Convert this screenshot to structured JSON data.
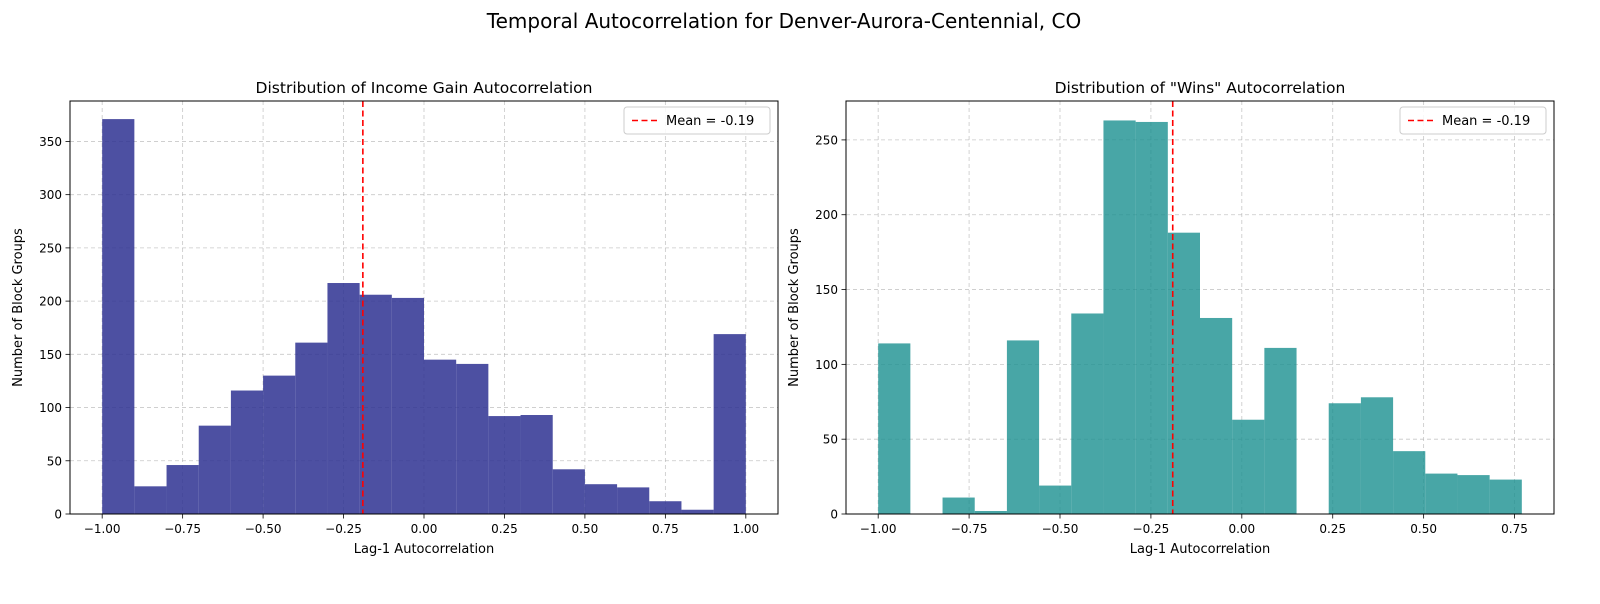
{
  "suptitle": "Temporal Autocorrelation for Denver-Aurora-Centennial, CO",
  "chart_data": [
    {
      "type": "bar",
      "subtype": "histogram",
      "title": "Distribution of Income Gain Autocorrelation",
      "xlabel": "Lag-1 Autocorrelation",
      "ylabel": "Number of Block Groups",
      "xlim": [
        -1.1,
        1.1
      ],
      "ylim": [
        0,
        388
      ],
      "xticks": [
        -1.0,
        -0.75,
        -0.5,
        -0.25,
        0.0,
        0.25,
        0.5,
        0.75,
        1.0
      ],
      "xtick_labels": [
        "−1.00",
        "−0.75",
        "−0.50",
        "−0.25",
        "0.00",
        "0.25",
        "0.50",
        "0.75",
        "1.00"
      ],
      "yticks": [
        0,
        50,
        100,
        150,
        200,
        250,
        300,
        350
      ],
      "bin_edges": [
        -1.0,
        -0.9,
        -0.8,
        -0.7,
        -0.6,
        -0.5,
        -0.4,
        -0.3,
        -0.2,
        -0.1,
        0.0,
        0.1,
        0.2,
        0.3,
        0.4,
        0.5,
        0.6,
        0.7,
        0.8,
        0.9,
        1.0
      ],
      "values": [
        371,
        26,
        46,
        83,
        116,
        130,
        161,
        217,
        206,
        203,
        145,
        141,
        92,
        93,
        42,
        28,
        25,
        12,
        4,
        169
      ],
      "bar_color": "#2e3192",
      "bar_opacity": 0.85,
      "mean": -0.19,
      "mean_color": "#ff0000",
      "legend": {
        "label": "Mean = -0.19",
        "position": "upper right"
      },
      "grid": true
    },
    {
      "type": "bar",
      "subtype": "histogram",
      "title": "Distribution of \"Wins\" Autocorrelation",
      "xlabel": "Lag-1 Autocorrelation",
      "ylabel": "Number of Block Groups",
      "xlim": [
        -1.0885,
        0.8585
      ],
      "ylim": [
        0,
        276
      ],
      "xticks": [
        -1.0,
        -0.75,
        -0.5,
        -0.25,
        0.0,
        0.25,
        0.5,
        0.75
      ],
      "xtick_labels": [
        "−1.00",
        "−0.75",
        "−0.50",
        "−0.25",
        "0.00",
        "0.25",
        "0.50",
        "0.75"
      ],
      "yticks": [
        0,
        50,
        100,
        150,
        200,
        250
      ],
      "bin_edges": [
        -1.0,
        -0.9115,
        -0.823,
        -0.7345,
        -0.646,
        -0.5575,
        -0.469,
        -0.3805,
        -0.292,
        -0.2035,
        -0.115,
        -0.0265,
        0.062,
        0.1505,
        0.239,
        0.3275,
        0.416,
        0.5045,
        0.593,
        0.6815,
        0.77
      ],
      "values": [
        114,
        0,
        11,
        2,
        116,
        19,
        134,
        263,
        262,
        188,
        131,
        63,
        111,
        0,
        74,
        78,
        42,
        27,
        26,
        23
      ],
      "bar_color": "#1a9090",
      "bar_opacity": 0.8,
      "mean": -0.19,
      "mean_color": "#ff0000",
      "legend": {
        "label": "Mean = -0.19",
        "position": "upper right"
      },
      "grid": true
    }
  ]
}
